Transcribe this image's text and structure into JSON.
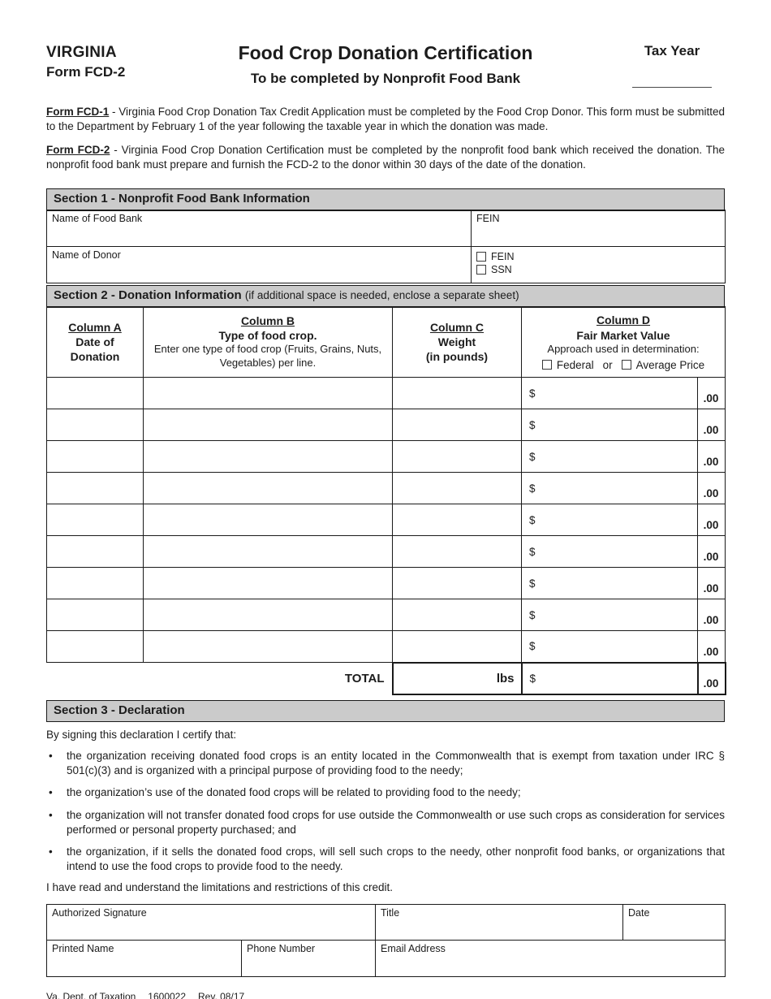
{
  "header": {
    "state": "VIRGINIA",
    "form_number": "Form FCD-2",
    "title": "Food Crop Donation Certification",
    "subtitle": "To be completed by Nonprofit Food Bank",
    "tax_year_label": "Tax Year"
  },
  "intro": {
    "paragraphs": [
      {
        "label": "Form FCD-1",
        "text": " - Virginia Food Crop Donation Tax Credit Application must be completed by the Food Crop Donor. This form must be submitted to the Department by February 1 of the year following the taxable year in which the donation was made."
      },
      {
        "label": "Form FCD-2",
        "text": " - Virginia Food Crop Donation Certification must be completed by the nonprofit food bank which received the donation. The nonprofit food bank must prepare and furnish the FCD-2 to the donor within 30 days of the date of the donation."
      }
    ]
  },
  "section1": {
    "title": "Section 1 - Nonprofit Food Bank Information",
    "food_bank_label": "Name of Food Bank",
    "fein_label": "FEIN",
    "donor_label": "Name of Donor",
    "donor_fein_label": "FEIN",
    "donor_ssn_label": "SSN"
  },
  "section2": {
    "title": "Section 2 - Donation Information",
    "note": "(if additional space is needed, enclose a separate sheet)",
    "col_a": {
      "name": "Column A",
      "line1": "Date of",
      "line2": "Donation"
    },
    "col_b": {
      "name": "Column B",
      "line1": "Type of food crop.",
      "desc": "Enter one type of food crop (Fruits, Grains, Nuts, Vegetables) per line."
    },
    "col_c": {
      "name": "Column C",
      "line1": "Weight",
      "line2": "(in pounds)"
    },
    "col_d": {
      "name": "Column D",
      "line1": "Fair Market Value",
      "approach": "Approach used in determination:",
      "federal": "Federal",
      "or": "or",
      "average": "Average Price"
    },
    "rows": 9,
    "currency_symbol": "$",
    "cents_suffix": ".00",
    "total_label": "TOTAL",
    "pounds_label": "lbs"
  },
  "section3": {
    "title": "Section 3 - Declaration",
    "lead": "By signing this declaration I certify that:",
    "bullet_char": "•",
    "bullets": [
      "the organization receiving donated food crops is an entity located in the Commonwealth that is exempt from taxation under IRC § 501(c)(3) and is organized with a principal purpose of providing food to the needy;",
      "the organization’s use of the donated food crops will be related to providing food to the needy;",
      "the organization will not transfer donated food crops for use outside the Commonwealth or use such crops as consideration for services performed or personal property purchased; and",
      "the organization, if it sells the donated food crops, will sell such crops to the needy, other nonprofit food banks, or organizations that intend to use the food crops to provide food to the needy."
    ],
    "closing": "I have read and understand the limitations and restrictions of this credit."
  },
  "signature": {
    "authorized_signature_label": "Authorized Signature",
    "title_label": "Title",
    "date_label": "Date",
    "printed_name_label": "Printed Name",
    "phone_number_label": "Phone Number",
    "email_label": "Email Address"
  },
  "footer": {
    "agency": "Va. Dept. of Taxation",
    "form_id": "1600022",
    "revision": "Rev. 08/17"
  },
  "colors": {
    "section_header_bg": "#cbcbcb",
    "border": "#1a1a1a"
  }
}
